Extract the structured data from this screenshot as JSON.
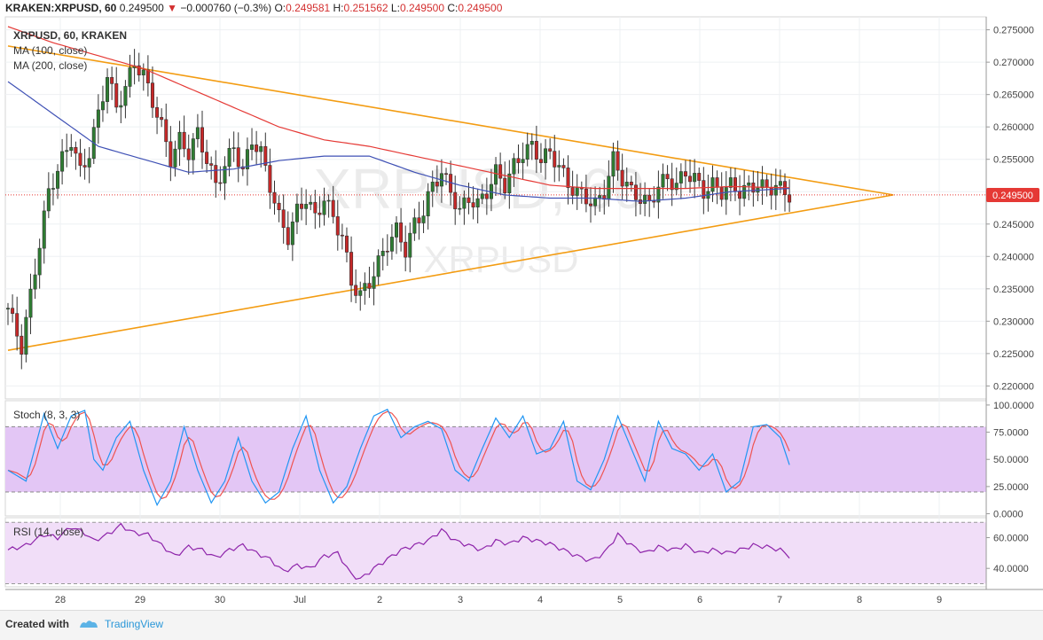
{
  "header": {
    "symbol": "KRAKEN:XRPUSD, 60",
    "last": "0.249500",
    "change_arrow": "▼",
    "change": "−0.000760 (−0.3%)",
    "o_label": "O:",
    "o_value": "0.249581",
    "h_label": "H:",
    "h_value": "0.251562",
    "l_label": "L:",
    "l_value": "0.249500",
    "c_label": "C:",
    "c_value": "0.249500"
  },
  "legend": {
    "title": "XRPUSD, 60, KRAKEN",
    "ma100": "MA (100, close)",
    "ma200": "MA (200, close)"
  },
  "watermark": {
    "big": "XRPUSD, 60",
    "small": "XRPUSD"
  },
  "price_label": "0.249500",
  "footer": {
    "created_with": "Created with",
    "brand": "TradingView"
  },
  "colors": {
    "up": "#2e7d32",
    "down": "#c62828",
    "trendline": "#f39c12",
    "ma100": "#3f51b5",
    "ma200": "#e53935",
    "stoch_k": "#2196f3",
    "stoch_d": "#ef5350",
    "rsi": "#8e24aa",
    "stoch_band": "#e3c6f5",
    "rsi_band": "#f1def8",
    "price_tag": "#e53935"
  },
  "chart_data": {
    "type": "candlestick",
    "x_ticks": [
      "28",
      "29",
      "30",
      "Jul",
      "2",
      "3",
      "4",
      "5",
      "6",
      "7",
      "8",
      "9"
    ],
    "price_axis": {
      "ylim": [
        0.218,
        0.277
      ],
      "ticks": [
        "0.275000",
        "0.270000",
        "0.265000",
        "0.260000",
        "0.255000",
        "0.250000",
        "0.245000",
        "0.240000",
        "0.235000",
        "0.230000",
        "0.225000",
        "0.220000"
      ]
    },
    "price_anchors": [
      [
        0,
        0.232
      ],
      [
        3,
        0.226
      ],
      [
        6,
        0.238
      ],
      [
        9,
        0.25
      ],
      [
        12,
        0.255
      ],
      [
        14,
        0.258
      ],
      [
        16,
        0.253
      ],
      [
        18,
        0.256
      ],
      [
        20,
        0.262
      ],
      [
        22,
        0.268
      ],
      [
        24,
        0.263
      ],
      [
        26,
        0.266
      ],
      [
        28,
        0.27
      ],
      [
        30,
        0.268
      ],
      [
        32,
        0.264
      ],
      [
        34,
        0.26
      ],
      [
        36,
        0.255
      ],
      [
        38,
        0.258
      ],
      [
        40,
        0.256
      ],
      [
        42,
        0.259
      ],
      [
        44,
        0.255
      ],
      [
        46,
        0.251
      ],
      [
        48,
        0.254
      ],
      [
        50,
        0.257
      ],
      [
        52,
        0.253
      ],
      [
        54,
        0.258
      ],
      [
        56,
        0.256
      ],
      [
        58,
        0.251
      ],
      [
        60,
        0.246
      ],
      [
        62,
        0.243
      ],
      [
        64,
        0.247
      ],
      [
        66,
        0.249
      ],
      [
        68,
        0.246
      ],
      [
        70,
        0.249
      ],
      [
        72,
        0.246
      ],
      [
        74,
        0.243
      ],
      [
        76,
        0.236
      ],
      [
        78,
        0.234
      ],
      [
        80,
        0.236
      ],
      [
        82,
        0.239
      ],
      [
        84,
        0.242
      ],
      [
        86,
        0.244
      ],
      [
        88,
        0.241
      ],
      [
        90,
        0.245
      ],
      [
        92,
        0.247
      ],
      [
        94,
        0.251
      ],
      [
        96,
        0.253
      ],
      [
        98,
        0.25
      ],
      [
        100,
        0.247
      ],
      [
        102,
        0.249
      ],
      [
        104,
        0.248
      ],
      [
        106,
        0.25
      ],
      [
        108,
        0.253
      ],
      [
        110,
        0.251
      ],
      [
        112,
        0.254
      ],
      [
        114,
        0.256
      ],
      [
        116,
        0.257
      ],
      [
        118,
        0.255
      ],
      [
        120,
        0.256
      ],
      [
        122,
        0.254
      ],
      [
        124,
        0.251
      ],
      [
        126,
        0.25
      ],
      [
        128,
        0.249
      ],
      [
        130,
        0.248
      ],
      [
        132,
        0.25
      ],
      [
        134,
        0.255
      ],
      [
        136,
        0.252
      ],
      [
        138,
        0.25
      ],
      [
        140,
        0.249
      ],
      [
        142,
        0.248
      ],
      [
        144,
        0.251
      ],
      [
        146,
        0.252
      ],
      [
        148,
        0.251
      ],
      [
        150,
        0.253
      ],
      [
        152,
        0.252
      ],
      [
        154,
        0.25
      ],
      [
        156,
        0.251
      ],
      [
        158,
        0.25
      ],
      [
        160,
        0.251
      ],
      [
        162,
        0.25
      ],
      [
        164,
        0.2505
      ],
      [
        166,
        0.2512
      ],
      [
        168,
        0.2503
      ],
      [
        170,
        0.251
      ],
      [
        172,
        0.2498
      ],
      [
        173,
        0.2495
      ]
    ],
    "ma100_anchors": [
      [
        0,
        0.267
      ],
      [
        10,
        0.262
      ],
      [
        20,
        0.257
      ],
      [
        30,
        0.255
      ],
      [
        40,
        0.253
      ],
      [
        50,
        0.2535
      ],
      [
        60,
        0.2548
      ],
      [
        70,
        0.2555
      ],
      [
        80,
        0.2555
      ],
      [
        90,
        0.253
      ],
      [
        100,
        0.251
      ],
      [
        110,
        0.2495
      ],
      [
        120,
        0.249
      ],
      [
        130,
        0.249
      ],
      [
        140,
        0.2485
      ],
      [
        150,
        0.249
      ],
      [
        160,
        0.25
      ],
      [
        173,
        0.2505
      ]
    ],
    "ma200_anchors": [
      [
        0,
        0.2755
      ],
      [
        10,
        0.273
      ],
      [
        20,
        0.271
      ],
      [
        30,
        0.269
      ],
      [
        40,
        0.266
      ],
      [
        50,
        0.263
      ],
      [
        60,
        0.26
      ],
      [
        70,
        0.258
      ],
      [
        80,
        0.257
      ],
      [
        90,
        0.2555
      ],
      [
        100,
        0.254
      ],
      [
        110,
        0.2525
      ],
      [
        120,
        0.251
      ],
      [
        130,
        0.2505
      ],
      [
        140,
        0.2505
      ],
      [
        150,
        0.2505
      ],
      [
        160,
        0.2508
      ],
      [
        173,
        0.2506
      ]
    ],
    "trendlines": [
      {
        "name": "upper",
        "points": [
          [
            0.0,
            0.2725
          ],
          [
            196.0,
            0.2495
          ]
        ]
      },
      {
        "name": "lower",
        "points": [
          [
            0.0,
            0.2255
          ],
          [
            196.0,
            0.2495
          ]
        ]
      }
    ],
    "stoch": {
      "label": "Stoch (8, 3, 3)",
      "ylim": [
        -2,
        104
      ],
      "ticks": [
        "100.0000",
        "75.0000",
        "50.0000",
        "25.0000",
        "0.0000"
      ],
      "band": [
        20,
        80
      ],
      "k_anchors": [
        [
          0,
          40
        ],
        [
          4,
          30
        ],
        [
          8,
          92
        ],
        [
          11,
          60
        ],
        [
          14,
          90
        ],
        [
          17,
          95
        ],
        [
          19,
          50
        ],
        [
          21,
          40
        ],
        [
          24,
          70
        ],
        [
          27,
          85
        ],
        [
          30,
          40
        ],
        [
          33,
          8
        ],
        [
          36,
          30
        ],
        [
          39,
          80
        ],
        [
          42,
          40
        ],
        [
          45,
          10
        ],
        [
          48,
          30
        ],
        [
          51,
          70
        ],
        [
          54,
          30
        ],
        [
          57,
          10
        ],
        [
          60,
          20
        ],
        [
          63,
          60
        ],
        [
          66,
          90
        ],
        [
          69,
          40
        ],
        [
          72,
          10
        ],
        [
          75,
          25
        ],
        [
          78,
          60
        ],
        [
          81,
          90
        ],
        [
          84,
          96
        ],
        [
          87,
          70
        ],
        [
          90,
          80
        ],
        [
          93,
          85
        ],
        [
          96,
          78
        ],
        [
          99,
          40
        ],
        [
          102,
          30
        ],
        [
          105,
          60
        ],
        [
          108,
          88
        ],
        [
          111,
          70
        ],
        [
          114,
          90
        ],
        [
          117,
          55
        ],
        [
          120,
          60
        ],
        [
          123,
          85
        ],
        [
          126,
          30
        ],
        [
          129,
          22
        ],
        [
          132,
          50
        ],
        [
          135,
          90
        ],
        [
          138,
          60
        ],
        [
          141,
          30
        ],
        [
          144,
          85
        ],
        [
          147,
          60
        ],
        [
          150,
          55
        ],
        [
          153,
          40
        ],
        [
          156,
          55
        ],
        [
          159,
          20
        ],
        [
          162,
          30
        ],
        [
          165,
          80
        ],
        [
          168,
          82
        ],
        [
          171,
          70
        ],
        [
          173,
          45
        ]
      ]
    },
    "rsi": {
      "label": "RSI (14, close)",
      "ylim": [
        28,
        73
      ],
      "ticks": [
        "60.0000",
        "40.0000"
      ],
      "band": [
        30,
        70
      ],
      "anchors": [
        [
          0,
          52
        ],
        [
          4,
          55
        ],
        [
          8,
          62
        ],
        [
          11,
          60
        ],
        [
          14,
          67
        ],
        [
          17,
          63
        ],
        [
          19,
          58
        ],
        [
          22,
          62
        ],
        [
          25,
          68
        ],
        [
          28,
          63
        ],
        [
          31,
          62
        ],
        [
          34,
          55
        ],
        [
          37,
          48
        ],
        [
          40,
          54
        ],
        [
          43,
          52
        ],
        [
          46,
          47
        ],
        [
          49,
          52
        ],
        [
          52,
          55
        ],
        [
          55,
          50
        ],
        [
          58,
          46
        ],
        [
          61,
          38
        ],
        [
          64,
          42
        ],
        [
          67,
          40
        ],
        [
          70,
          48
        ],
        [
          73,
          50
        ],
        [
          76,
          36
        ],
        [
          78,
          33
        ],
        [
          81,
          40
        ],
        [
          84,
          46
        ],
        [
          87,
          52
        ],
        [
          90,
          55
        ],
        [
          93,
          58
        ],
        [
          96,
          65
        ],
        [
          99,
          58
        ],
        [
          102,
          55
        ],
        [
          105,
          52
        ],
        [
          108,
          58
        ],
        [
          111,
          56
        ],
        [
          114,
          60
        ],
        [
          117,
          58
        ],
        [
          120,
          56
        ],
        [
          123,
          52
        ],
        [
          126,
          48
        ],
        [
          129,
          45
        ],
        [
          132,
          50
        ],
        [
          135,
          62
        ],
        [
          138,
          55
        ],
        [
          141,
          50
        ],
        [
          144,
          54
        ],
        [
          147,
          52
        ],
        [
          150,
          55
        ],
        [
          153,
          50
        ],
        [
          156,
          52
        ],
        [
          159,
          50
        ],
        [
          162,
          52
        ],
        [
          165,
          55
        ],
        [
          168,
          54
        ],
        [
          171,
          52
        ],
        [
          173,
          48
        ]
      ]
    }
  }
}
